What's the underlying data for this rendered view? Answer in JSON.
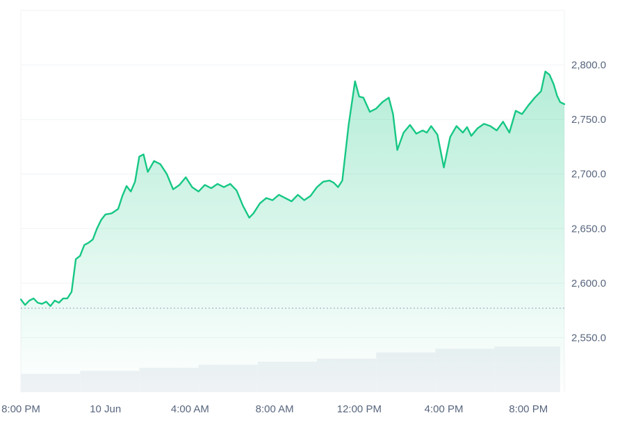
{
  "chart_data": {
    "type": "area",
    "title": "",
    "xlabel": "",
    "ylabel": "",
    "x_tick_labels": [
      "8:00 PM",
      "10 Jun",
      "4:00 AM",
      "8:00 AM",
      "12:00 PM",
      "4:00 PM",
      "8:00 PM"
    ],
    "y_tick_labels": [
      "2,550.0",
      "2,600.0",
      "2,650.0",
      "2,700.0",
      "2,750.0",
      "2,800.0"
    ],
    "y_ticks": [
      2550,
      2600,
      2650,
      2700,
      2750,
      2800
    ],
    "ylim": [
      2500,
      2850
    ],
    "x_hours_range": [
      0,
      25.7
    ],
    "baseline_value": 2577,
    "grid": "horizontal",
    "legend": "none",
    "colors": {
      "line": "#16c784",
      "fill_top": "#16c784",
      "baseline": "#a6b0c3",
      "volume": "#eff2f5",
      "grid": "#eff2f5",
      "tick_text": "#58667e"
    },
    "series": [
      {
        "x": [
          0.0,
          0.2,
          0.4,
          0.6,
          0.8,
          1.0,
          1.2,
          1.4,
          1.6,
          1.8,
          2.0,
          2.2,
          2.4,
          2.6,
          2.8,
          3.0,
          3.2,
          3.4,
          3.6,
          3.8,
          4.0,
          4.3,
          4.6,
          4.8,
          5.0,
          5.2,
          5.4,
          5.6,
          5.8,
          6.0,
          6.3,
          6.6,
          6.9,
          7.2,
          7.5,
          7.8,
          8.1,
          8.4,
          8.7,
          9.0,
          9.3,
          9.6,
          9.9,
          10.2,
          10.5,
          10.8,
          11.0,
          11.3,
          11.6,
          11.9,
          12.2,
          12.5,
          12.8,
          13.1,
          13.4,
          13.7,
          14.0,
          14.3,
          14.6,
          14.8,
          15.0,
          15.2,
          15.5,
          15.8,
          16.0,
          16.2,
          16.5,
          16.8,
          17.1,
          17.4,
          17.6,
          17.8,
          18.1,
          18.4,
          18.7,
          19.0,
          19.2,
          19.4,
          19.7,
          20.0,
          20.3,
          20.6,
          20.9,
          21.1,
          21.3,
          21.6,
          21.9,
          22.2,
          22.5,
          22.8,
          23.1,
          23.4,
          23.7,
          24.0,
          24.3,
          24.6,
          24.8,
          25.0,
          25.2,
          25.35,
          25.5,
          25.7
        ],
        "values": [
          2585,
          2580,
          2584,
          2586,
          2582,
          2581,
          2583,
          2579,
          2584,
          2582,
          2586,
          2586,
          2592,
          2622,
          2625,
          2635,
          2637,
          2640,
          2650,
          2658,
          2663,
          2664,
          2668,
          2680,
          2689,
          2684,
          2693,
          2716,
          2718,
          2702,
          2712,
          2709,
          2700,
          2686,
          2690,
          2697,
          2688,
          2684,
          2690,
          2687,
          2691,
          2688,
          2691,
          2685,
          2671,
          2660,
          2664,
          2673,
          2678,
          2676,
          2681,
          2678,
          2675,
          2681,
          2676,
          2680,
          2688,
          2693,
          2694,
          2692,
          2688,
          2694,
          2745,
          2785,
          2771,
          2770,
          2757,
          2760,
          2766,
          2770,
          2755,
          2722,
          2738,
          2745,
          2737,
          2740,
          2738,
          2744,
          2736,
          2706,
          2734,
          2744,
          2738,
          2743,
          2735,
          2742,
          2746,
          2744,
          2740,
          2748,
          2738,
          2758,
          2755,
          2763,
          2770,
          2776,
          2794,
          2791,
          2782,
          2772,
          2766,
          2764
        ]
      }
    ],
    "volume_bars": [
      {
        "x_start": 0.0,
        "x_end": 2.8,
        "relative": 0.24
      },
      {
        "x_start": 2.8,
        "x_end": 5.6,
        "relative": 0.28
      },
      {
        "x_start": 5.6,
        "x_end": 8.4,
        "relative": 0.32
      },
      {
        "x_start": 8.4,
        "x_end": 11.2,
        "relative": 0.36
      },
      {
        "x_start": 11.2,
        "x_end": 14.0,
        "relative": 0.4
      },
      {
        "x_start": 14.0,
        "x_end": 16.8,
        "relative": 0.44
      },
      {
        "x_start": 16.8,
        "x_end": 19.6,
        "relative": 0.52
      },
      {
        "x_start": 19.6,
        "x_end": 22.4,
        "relative": 0.57
      },
      {
        "x_start": 22.4,
        "x_end": 25.5,
        "relative": 0.6
      }
    ]
  }
}
